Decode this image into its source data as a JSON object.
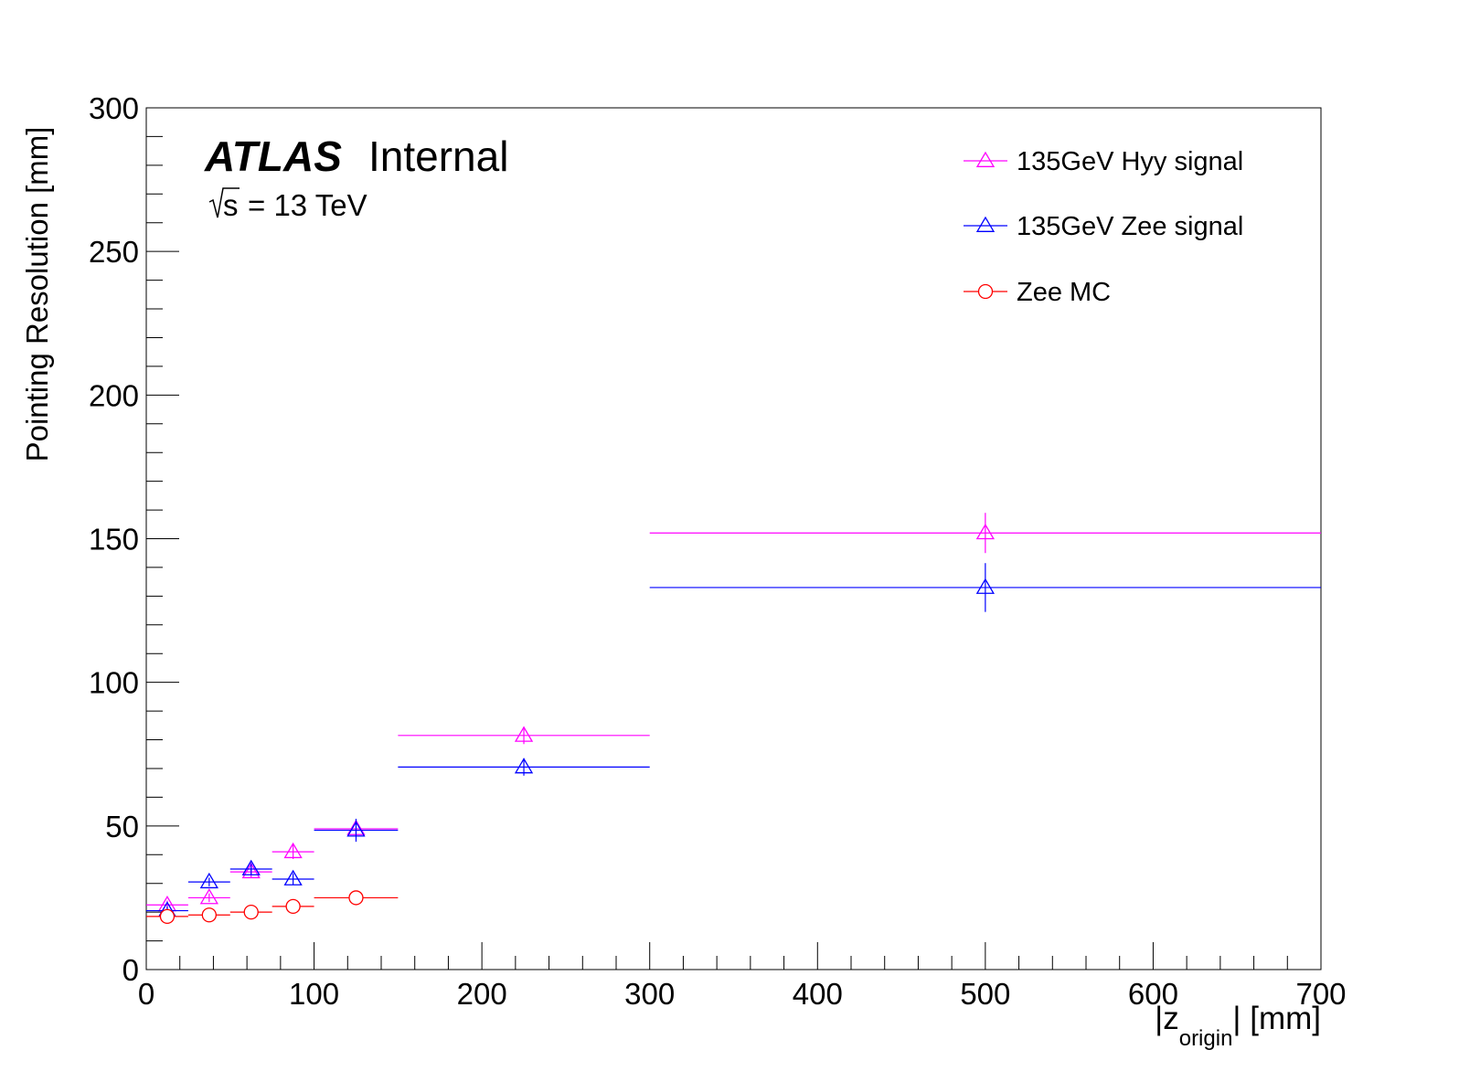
{
  "chart_data": {
    "type": "scatter",
    "atlas_label": {
      "experiment": "ATLAS",
      "status": "Internal",
      "energy_sqrt": "s",
      "energy_value": "= 13 TeV"
    },
    "xlabel": {
      "prefix": "|z",
      "sub": "origin",
      "suffix": "| [mm]"
    },
    "ylabel": "Pointing Resolution [mm]",
    "xlim": [
      0,
      700
    ],
    "ylim": [
      0,
      300
    ],
    "x_ticks": [
      "0",
      "100",
      "200",
      "300",
      "400",
      "500",
      "600",
      "700"
    ],
    "y_ticks": [
      "0",
      "50",
      "100",
      "150",
      "200",
      "250",
      "300"
    ],
    "grid": false,
    "legend_position": "top-right",
    "series": [
      {
        "name": "135GeV Hyy signal",
        "color": "#ff00ff",
        "marker": "open-triangle",
        "points": [
          {
            "x": 12.5,
            "xlo": 0,
            "xhi": 25,
            "y": 22.5,
            "yerr": 1.5
          },
          {
            "x": 37.5,
            "xlo": 25,
            "xhi": 50,
            "y": 25,
            "yerr": 1.5
          },
          {
            "x": 62.5,
            "xlo": 50,
            "xhi": 75,
            "y": 34,
            "yerr": 2
          },
          {
            "x": 87.5,
            "xlo": 75,
            "xhi": 100,
            "y": 41,
            "yerr": 2.5
          },
          {
            "x": 125,
            "xlo": 100,
            "xhi": 150,
            "y": 49,
            "yerr": 2.5
          },
          {
            "x": 225,
            "xlo": 150,
            "xhi": 300,
            "y": 81.5,
            "yerr": 3
          },
          {
            "x": 500,
            "xlo": 300,
            "xhi": 700,
            "y": 152,
            "yerr": 7
          }
        ]
      },
      {
        "name": "135GeV Zee signal",
        "color": "#0000ff",
        "marker": "open-triangle",
        "points": [
          {
            "x": 12.5,
            "xlo": 0,
            "xhi": 25,
            "y": 20.5,
            "yerr": 1.5
          },
          {
            "x": 37.5,
            "xlo": 25,
            "xhi": 50,
            "y": 30.5,
            "yerr": 1.5
          },
          {
            "x": 62.5,
            "xlo": 50,
            "xhi": 75,
            "y": 35,
            "yerr": 2
          },
          {
            "x": 87.5,
            "xlo": 75,
            "xhi": 100,
            "y": 31.5,
            "yerr": 2
          },
          {
            "x": 125,
            "xlo": 100,
            "xhi": 150,
            "y": 48.5,
            "yerr": 4
          },
          {
            "x": 225,
            "xlo": 150,
            "xhi": 300,
            "y": 70.5,
            "yerr": 3
          },
          {
            "x": 500,
            "xlo": 300,
            "xhi": 700,
            "y": 133,
            "yerr": 8.5
          }
        ]
      },
      {
        "name": "Zee MC",
        "color": "#ff0000",
        "marker": "open-circle",
        "points": [
          {
            "x": 12.5,
            "xlo": 0,
            "xhi": 25,
            "y": 18.5,
            "yerr": 0.5
          },
          {
            "x": 37.5,
            "xlo": 25,
            "xhi": 50,
            "y": 19,
            "yerr": 0.5
          },
          {
            "x": 62.5,
            "xlo": 50,
            "xhi": 75,
            "y": 20,
            "yerr": 0.5
          },
          {
            "x": 87.5,
            "xlo": 75,
            "xhi": 100,
            "y": 22,
            "yerr": 0.5
          },
          {
            "x": 125,
            "xlo": 100,
            "xhi": 150,
            "y": 25,
            "yerr": 0.5
          }
        ]
      }
    ]
  }
}
